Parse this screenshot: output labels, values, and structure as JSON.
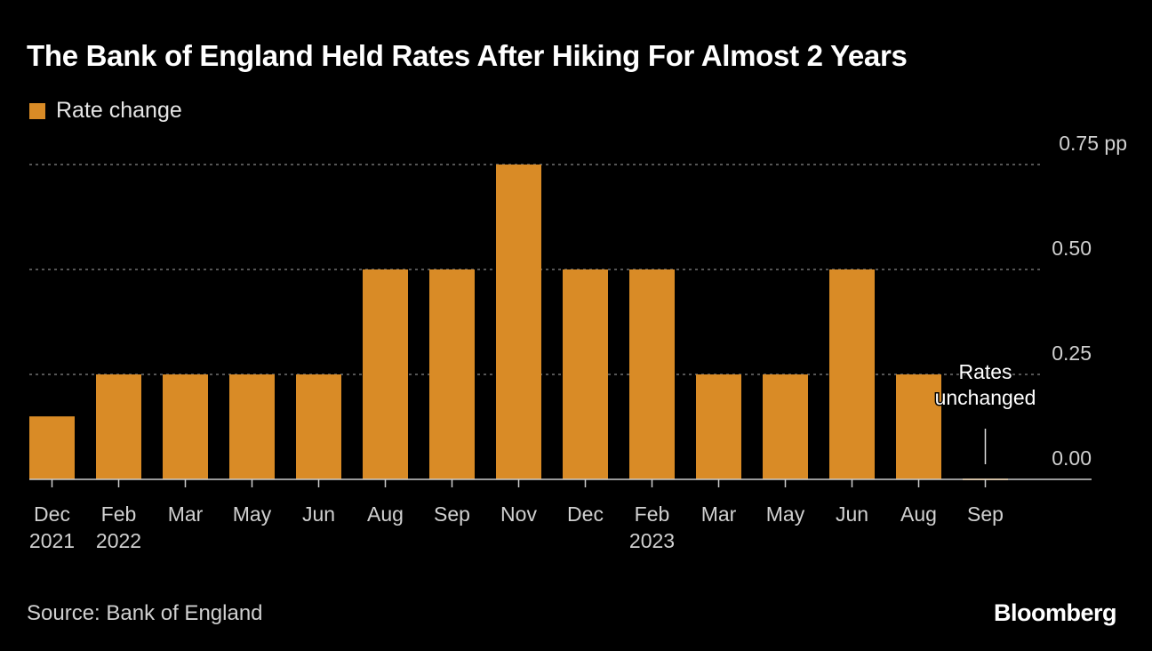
{
  "title": "The Bank of England Held Rates After Hiking For Almost 2 Years",
  "source": "Source: Bank of England",
  "logo": "Bloomberg",
  "chart_data": {
    "type": "bar",
    "title": "The Bank of England Held Rates After Hiking For Almost 2 Years",
    "legend": {
      "entries": [
        "Rate change"
      ],
      "placement": "top-left"
    },
    "series": [
      {
        "name": "Rate change",
        "color": "#d98b26",
        "values": [
          0.15,
          0.25,
          0.25,
          0.25,
          0.25,
          0.5,
          0.5,
          0.75,
          0.5,
          0.5,
          0.25,
          0.25,
          0.5,
          0.25,
          0
        ]
      }
    ],
    "categories": [
      "Dec 2021",
      "Feb 2022",
      "Mar",
      "May",
      "Jun",
      "Aug",
      "Sep",
      "Nov",
      "Dec",
      "Feb 2023",
      "Mar",
      "May",
      "Jun",
      "Aug",
      "Sep"
    ],
    "x_tick_labels": [
      [
        "Dec",
        "2021"
      ],
      [
        "Feb",
        "2022"
      ],
      [
        "Mar"
      ],
      [
        "May"
      ],
      [
        "Jun"
      ],
      [
        "Aug"
      ],
      [
        "Sep"
      ],
      [
        "Nov"
      ],
      [
        "Dec"
      ],
      [
        "Feb",
        "2023"
      ],
      [
        "Mar"
      ],
      [
        "May"
      ],
      [
        "Jun"
      ],
      [
        "Aug"
      ],
      [
        "Sep"
      ]
    ],
    "ylim": [
      0,
      0.75
    ],
    "y_ticks": [
      0,
      0.25,
      0.5,
      0.75
    ],
    "y_tick_labels": [
      "0.00",
      "0.25",
      "0.50",
      "0.75"
    ],
    "y_unit": "pp",
    "y_axis_position": "right",
    "grid": true,
    "annotation": {
      "text": [
        "Rates",
        "unchanged"
      ],
      "category": "Sep"
    }
  }
}
